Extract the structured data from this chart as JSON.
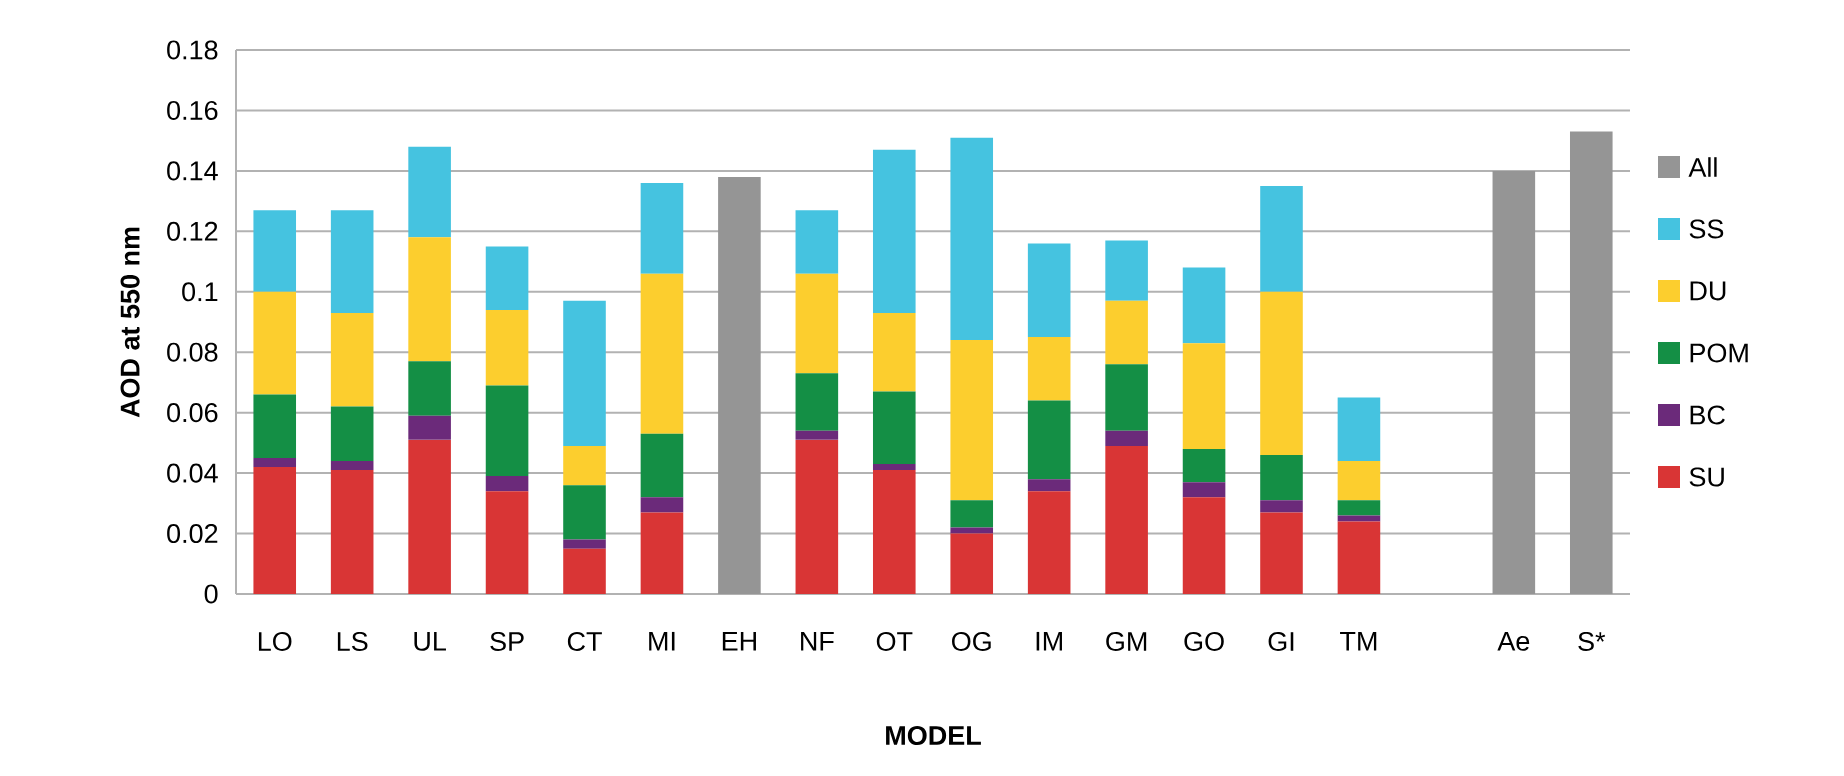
{
  "chart_data": {
    "type": "bar",
    "stacked": true,
    "xlabel": "MODEL",
    "ylabel": "AOD at 550 nm",
    "categories": [
      "LO",
      "LS",
      "UL",
      "SP",
      "CT",
      "MI",
      "EH",
      "NF",
      "OT",
      "OG",
      "IM",
      "GM",
      "GO",
      "GI",
      "TM",
      null,
      "Ae",
      "S*"
    ],
    "series": [
      {
        "name": "SU",
        "color": "#d93535",
        "values": [
          0.042,
          0.041,
          0.051,
          0.034,
          0.015,
          0.027,
          null,
          0.051,
          0.041,
          0.02,
          0.034,
          0.049,
          0.032,
          0.027,
          0.024,
          null,
          null,
          null
        ]
      },
      {
        "name": "BC",
        "color": "#6b2a7a",
        "values": [
          0.003,
          0.003,
          0.008,
          0.005,
          0.003,
          0.005,
          null,
          0.003,
          0.002,
          0.002,
          0.004,
          0.005,
          0.005,
          0.004,
          0.002,
          null,
          null,
          null
        ]
      },
      {
        "name": "POM",
        "color": "#148f45",
        "values": [
          0.021,
          0.018,
          0.018,
          0.03,
          0.018,
          0.021,
          null,
          0.019,
          0.024,
          0.009,
          0.026,
          0.022,
          0.011,
          0.015,
          0.005,
          null,
          null,
          null
        ]
      },
      {
        "name": "DU",
        "color": "#fcce2e",
        "values": [
          0.034,
          0.031,
          0.041,
          0.025,
          0.013,
          0.053,
          null,
          0.033,
          0.026,
          0.053,
          0.021,
          0.021,
          0.035,
          0.054,
          0.013,
          null,
          null,
          null
        ]
      },
      {
        "name": "SS",
        "color": "#45c3e0",
        "values": [
          0.027,
          0.034,
          0.03,
          0.021,
          0.048,
          0.03,
          null,
          0.021,
          0.054,
          0.067,
          0.031,
          0.02,
          0.025,
          0.035,
          0.021,
          null,
          null,
          null
        ]
      },
      {
        "name": "All",
        "color": "#959595",
        "values": [
          null,
          null,
          null,
          null,
          null,
          null,
          0.138,
          null,
          null,
          null,
          null,
          null,
          null,
          null,
          null,
          null,
          0.14,
          0.153
        ]
      }
    ],
    "ylim": [
      0,
      0.18
    ],
    "yticks": [
      0,
      0.02,
      0.04,
      0.06,
      0.08,
      0.1,
      0.12,
      0.14,
      0.16,
      0.18
    ],
    "grid": "y",
    "legend": "right"
  }
}
